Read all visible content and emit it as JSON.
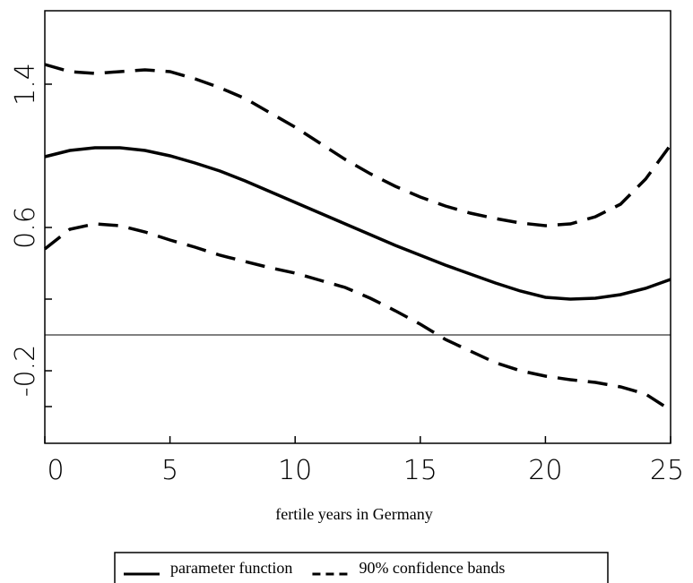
{
  "chart_data": {
    "type": "line",
    "xlabel": "fertile years in Germany",
    "x": [
      0,
      1,
      2,
      3,
      4,
      5,
      6,
      7,
      8,
      9,
      10,
      11,
      12,
      13,
      14,
      15,
      16,
      17,
      18,
      19,
      20,
      21,
      22,
      23,
      24,
      25
    ],
    "series": [
      {
        "name": "parameter function",
        "color": "#000000",
        "dash": false,
        "values": [
          0.995,
          1.03,
          1.045,
          1.045,
          1.03,
          1.0,
          0.96,
          0.915,
          0.86,
          0.8,
          0.74,
          0.68,
          0.62,
          0.56,
          0.5,
          0.445,
          0.39,
          0.34,
          0.29,
          0.245,
          0.21,
          0.2,
          0.205,
          0.225,
          0.26,
          0.31
        ]
      },
      {
        "name": "90% confidence bands",
        "color": "#000000",
        "dash": true,
        "values": [
          1.51,
          1.47,
          1.46,
          1.47,
          1.48,
          1.47,
          1.43,
          1.38,
          1.32,
          1.24,
          1.16,
          1.07,
          0.98,
          0.9,
          0.83,
          0.77,
          0.72,
          0.68,
          0.65,
          0.625,
          0.61,
          0.62,
          0.66,
          0.73,
          0.87,
          1.06
        ]
      },
      {
        "color": "#000000",
        "dash": true,
        "values": [
          0.48,
          0.59,
          0.62,
          0.61,
          0.575,
          0.53,
          0.49,
          0.445,
          0.41,
          0.375,
          0.345,
          0.305,
          0.265,
          0.205,
          0.135,
          0.06,
          -0.025,
          -0.09,
          -0.155,
          -0.2,
          -0.23,
          -0.25,
          -0.265,
          -0.29,
          -0.33,
          -0.42
        ]
      }
    ],
    "xlim": [
      0,
      25
    ],
    "xticks": [
      0,
      5,
      10,
      15,
      20,
      25
    ],
    "ylim": [
      -0.605,
      1.81
    ],
    "yticks": [
      -0.2,
      0.6,
      1.4
    ],
    "minor_yticks": [
      -0.4,
      0.2,
      1.0
    ],
    "hline": 0,
    "grid": false,
    "legend": "bottom"
  }
}
